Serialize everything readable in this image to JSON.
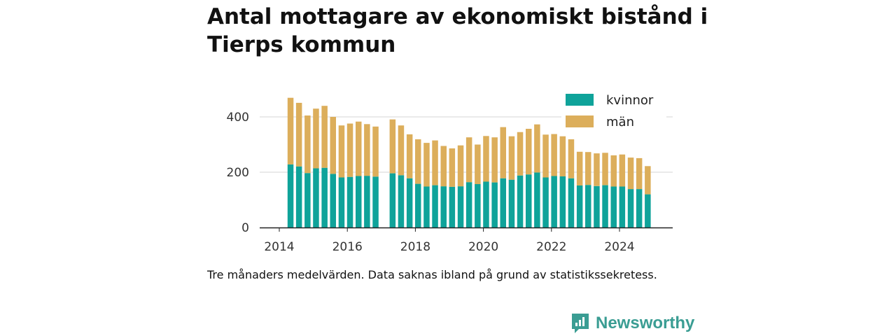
{
  "chart_data": {
    "type": "bar",
    "stacked": true,
    "title": "Antal mottagare av ekonomiskt bistånd i Tierps kommun",
    "caption": "Tre månaders medelvärden. Data saknas ibland på grund av statistikssekretess.",
    "xlabel": "",
    "ylabel": "",
    "x_range": [
      2013.7,
      2025.3
    ],
    "ylim": [
      0,
      480
    ],
    "y_ticks": [
      0,
      200,
      400
    ],
    "y_tick_labels": [
      "0",
      "200",
      "400"
    ],
    "x_ticks": [
      2014,
      2016,
      2018,
      2020,
      2022,
      2024
    ],
    "x_tick_labels": [
      "2014",
      "2016",
      "2018",
      "2020",
      "2022",
      "2024"
    ],
    "legend_position": "top-right",
    "x": [
      2014.33,
      2014.58,
      2014.83,
      2015.08,
      2015.33,
      2015.58,
      2015.83,
      2016.08,
      2016.33,
      2016.58,
      2016.83,
      2017.33,
      2017.58,
      2017.83,
      2018.08,
      2018.33,
      2018.58,
      2018.83,
      2019.08,
      2019.33,
      2019.58,
      2019.83,
      2020.08,
      2020.33,
      2020.58,
      2020.83,
      2021.08,
      2021.33,
      2021.58,
      2021.83,
      2022.08,
      2022.33,
      2022.58,
      2022.83,
      2023.08,
      2023.33,
      2023.58,
      2023.83,
      2024.08,
      2024.33,
      2024.58,
      2024.83
    ],
    "series": [
      {
        "name": "kvinnor",
        "color": "#0fa39a",
        "values": [
          228,
          221,
          197,
          214,
          216,
          194,
          181,
          183,
          186,
          187,
          184,
          196,
          189,
          178,
          158,
          148,
          153,
          149,
          147,
          149,
          164,
          157,
          166,
          163,
          178,
          173,
          188,
          192,
          199,
          181,
          186,
          185,
          178,
          152,
          154,
          150,
          153,
          148,
          148,
          139,
          139,
          120
        ]
      },
      {
        "name": "män",
        "color": "#dcae5b",
        "values": [
          241,
          230,
          208,
          216,
          224,
          206,
          188,
          193,
          197,
          187,
          181,
          195,
          180,
          159,
          161,
          158,
          162,
          146,
          139,
          148,
          162,
          143,
          165,
          163,
          185,
          157,
          157,
          165,
          174,
          155,
          152,
          145,
          141,
          122,
          119,
          118,
          117,
          113,
          116,
          114,
          112,
          102
        ]
      }
    ]
  },
  "brand": {
    "name": "Newsworthy"
  }
}
